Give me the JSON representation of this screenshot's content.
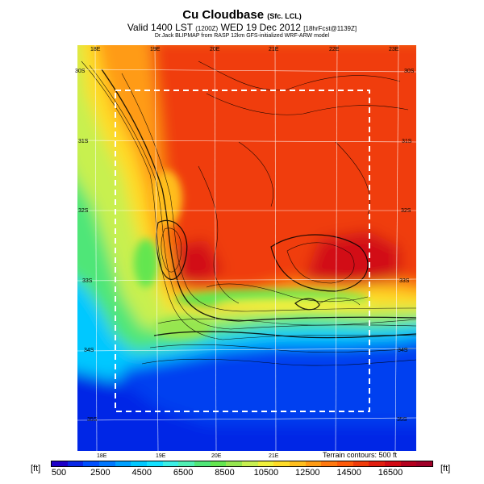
{
  "header": {
    "title": "Cu Cloudbase",
    "title_suffix": "(Sfc. LCL)",
    "subtitle": "Valid 1400 LST",
    "subtitle_code": "(1200Z)",
    "subtitle_date": "WED 19 Dec 2012",
    "subtitle_run": "[18hrFcst@1139Z]",
    "source": "Dr.Jack BLIPMAP from RASP 12km GFS-initialized WRF-ARW model"
  },
  "map": {
    "lon_labels_top": [
      "18E",
      "19E",
      "20E",
      "21E",
      "22E",
      "23E"
    ],
    "lon_labels_bottom": [
      "18E",
      "19E",
      "20E",
      "21E"
    ],
    "lat_labels_left": [
      "30S",
      "31S",
      "32S",
      "33S",
      "34S",
      "35S"
    ],
    "lat_labels_right": [
      "30S",
      "31S",
      "32S",
      "33S",
      "34S",
      "35S"
    ],
    "terrain_note": "Terrain contours: 500 ft",
    "inner_domain_box": "dashed white"
  },
  "colorbar": {
    "unit_left": "[ft]",
    "unit_right": "[ft]",
    "tick_labels": [
      "500",
      "2500",
      "4500",
      "6500",
      "8500",
      "10500",
      "12500",
      "14500",
      "16500"
    ],
    "colors": [
      "#1e00c8",
      "#0a28e6",
      "#0050ff",
      "#0078ff",
      "#00a0ff",
      "#00c8ff",
      "#14e1ff",
      "#3cf0e6",
      "#50f0b4",
      "#50e678",
      "#64e650",
      "#96e650",
      "#c8f050",
      "#f0f03c",
      "#ffdc28",
      "#ffbe1e",
      "#ff9b14",
      "#ff780f",
      "#ff5a0a",
      "#f03c0a",
      "#e11e0f",
      "#d20a14",
      "#b4001e",
      "#a00028"
    ]
  }
}
